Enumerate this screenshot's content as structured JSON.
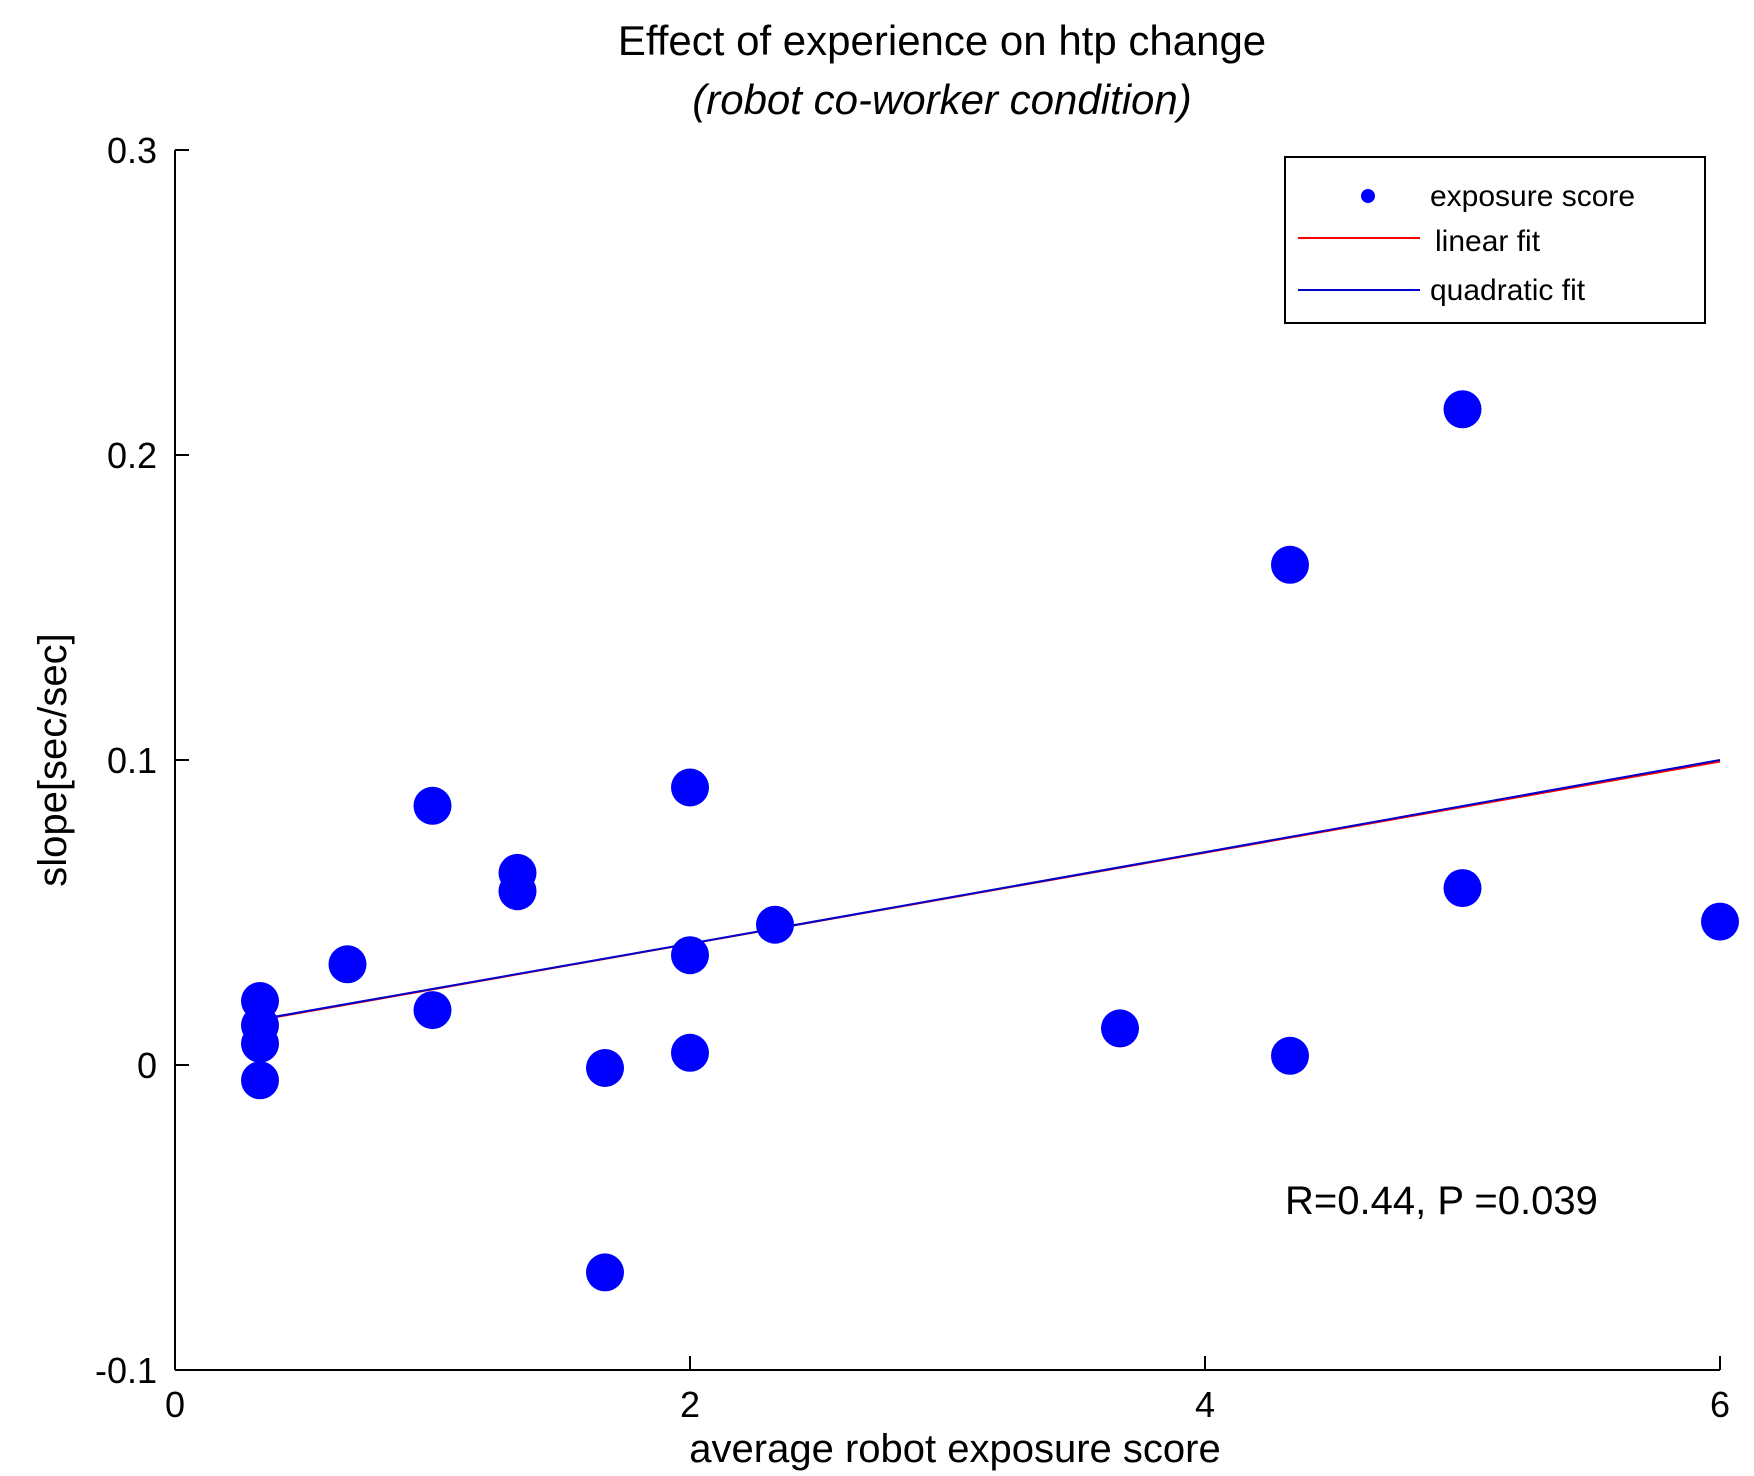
{
  "chart_data": {
    "type": "scatter",
    "title": "Effect of experience on htp change",
    "subtitle": "(robot co-worker condition)",
    "xlabel": "average robot exposure score",
    "ylabel": "slope[sec/sec]",
    "xlim": [
      0,
      6
    ],
    "ylim": [
      -0.1,
      0.3
    ],
    "xticks": [
      0,
      2,
      4,
      6
    ],
    "xtick_labels": [
      "0",
      "2",
      "4",
      "6"
    ],
    "yticks": [
      -0.1,
      0,
      0.1,
      0.2,
      0.3
    ],
    "ytick_labels": [
      "-0.1",
      "0",
      "0.1",
      "0.2",
      "0.3"
    ],
    "grid": false,
    "legend_position": "top-right",
    "series": [
      {
        "name": "exposure score",
        "kind": "scatter",
        "color": "#0000ff",
        "points": [
          [
            0.33,
            0.021
          ],
          [
            0.33,
            0.013
          ],
          [
            0.33,
            0.007
          ],
          [
            0.33,
            -0.005
          ],
          [
            0.67,
            0.033
          ],
          [
            1.0,
            0.085
          ],
          [
            1.0,
            0.018
          ],
          [
            1.33,
            0.063
          ],
          [
            1.33,
            0.057
          ],
          [
            1.67,
            -0.001
          ],
          [
            1.67,
            -0.068
          ],
          [
            2.0,
            0.091
          ],
          [
            2.0,
            0.036
          ],
          [
            2.0,
            0.004
          ],
          [
            2.33,
            0.046
          ],
          [
            3.67,
            0.012
          ],
          [
            4.33,
            0.164
          ],
          [
            4.33,
            0.003
          ],
          [
            5.0,
            0.215
          ],
          [
            5.0,
            0.058
          ],
          [
            6.0,
            0.047
          ]
        ]
      },
      {
        "name": "linear fit",
        "kind": "line",
        "color": "#ff0000",
        "points": [
          [
            0.33,
            0.0148
          ],
          [
            6.0,
            0.0995
          ]
        ]
      },
      {
        "name": "quadratic fit",
        "kind": "line",
        "color": "#0000cc",
        "points": [
          [
            0.33,
            0.015
          ],
          [
            2.0,
            0.0398
          ],
          [
            4.0,
            0.0698
          ],
          [
            6.0,
            0.1
          ]
        ]
      }
    ],
    "annotation": "R=0.44, P =0.039"
  }
}
